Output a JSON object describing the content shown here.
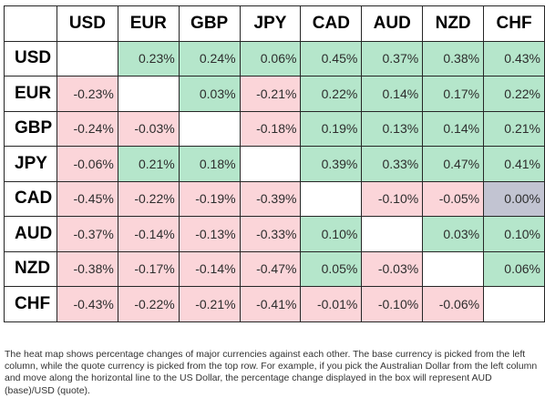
{
  "chart_data": {
    "type": "heatmap",
    "columns": [
      "USD",
      "EUR",
      "GBP",
      "JPY",
      "CAD",
      "AUD",
      "NZD",
      "CHF"
    ],
    "rows": [
      "USD",
      "EUR",
      "GBP",
      "JPY",
      "CAD",
      "AUD",
      "NZD",
      "CHF"
    ],
    "values": [
      [
        "",
        "0.23%",
        "0.24%",
        "0.06%",
        "0.45%",
        "0.37%",
        "0.38%",
        "0.43%"
      ],
      [
        "-0.23%",
        "",
        "0.03%",
        "-0.21%",
        "0.22%",
        "0.14%",
        "0.17%",
        "0.22%"
      ],
      [
        "-0.24%",
        "-0.03%",
        "",
        "-0.18%",
        "0.19%",
        "0.13%",
        "0.14%",
        "0.21%"
      ],
      [
        "-0.06%",
        "0.21%",
        "0.18%",
        "",
        "0.39%",
        "0.33%",
        "0.47%",
        "0.41%"
      ],
      [
        "-0.45%",
        "-0.22%",
        "-0.19%",
        "-0.39%",
        "",
        "-0.10%",
        "-0.05%",
        "0.00%"
      ],
      [
        "-0.37%",
        "-0.14%",
        "-0.13%",
        "-0.33%",
        "0.10%",
        "",
        "0.03%",
        "0.10%"
      ],
      [
        "-0.38%",
        "-0.17%",
        "-0.14%",
        "-0.47%",
        "0.05%",
        "-0.03%",
        "",
        "0.06%"
      ],
      [
        "-0.43%",
        "-0.22%",
        "-0.21%",
        "-0.41%",
        "-0.01%",
        "-0.10%",
        "-0.06%",
        ""
      ]
    ],
    "colors": {
      "positive": "#b5e6cb",
      "negative": "#fbd5d9",
      "neutral": "#c2c4d2",
      "empty": "#ffffff"
    }
  },
  "note": "The heat map shows percentage changes of major currencies against each other. The base currency is picked from the left column, while the quote currency is picked from the top row. For example, if you pick the Australian Dollar from the left column and move along the horizontal line to the US Dollar, the percentage change displayed in the box will represent AUD (base)/USD (quote)."
}
